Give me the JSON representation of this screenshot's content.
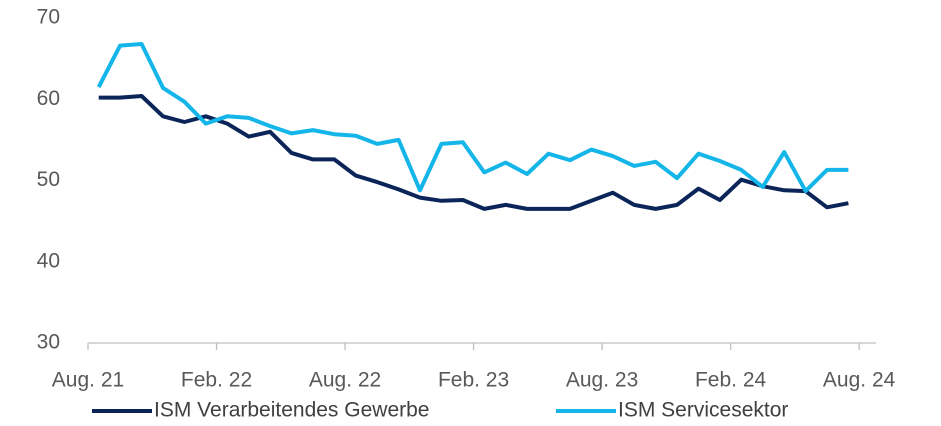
{
  "chart_data": {
    "type": "line",
    "categories": [
      "Aug. 21",
      null,
      null,
      null,
      null,
      null,
      "Feb. 22",
      null,
      null,
      null,
      null,
      null,
      "Aug. 22",
      null,
      null,
      null,
      null,
      null,
      "Feb. 23",
      null,
      null,
      null,
      null,
      null,
      "Aug. 23",
      null,
      null,
      null,
      null,
      null,
      "Feb. 24",
      null,
      null,
      null,
      null,
      null,
      "Aug. 24"
    ],
    "series": [
      {
        "name": "ISM Verarbeitendes Gewerbe",
        "color": "#0b2559",
        "values": [
          null,
          60.2,
          60.2,
          60.4,
          57.9,
          57.2,
          57.9,
          57.0,
          55.4,
          56.0,
          53.4,
          52.6,
          52.6,
          50.6,
          49.8,
          48.9,
          47.9,
          47.5,
          47.6,
          46.5,
          47.0,
          46.5,
          46.5,
          46.5,
          47.5,
          48.5,
          47.0,
          46.5,
          47.0,
          49.0,
          47.6,
          50.1,
          49.3,
          48.8,
          48.7,
          46.7,
          47.2
        ]
      },
      {
        "name": "ISM Servicesektor",
        "color": "#14b5e8",
        "values": [
          null,
          61.5,
          66.6,
          66.8,
          61.4,
          59.7,
          57.0,
          57.9,
          57.7,
          56.7,
          55.8,
          56.2,
          55.7,
          55.5,
          54.5,
          55.0,
          48.8,
          54.5,
          54.7,
          51.0,
          52.2,
          50.8,
          53.3,
          52.5,
          53.8,
          53.0,
          51.8,
          52.3,
          50.3,
          53.3,
          52.4,
          51.3,
          49.2,
          53.5,
          48.7,
          51.3,
          51.3
        ]
      }
    ],
    "ylim": [
      30,
      70
    ],
    "yticks": [
      30,
      40,
      50,
      60,
      70
    ],
    "grid": false,
    "legend": "bottom"
  }
}
